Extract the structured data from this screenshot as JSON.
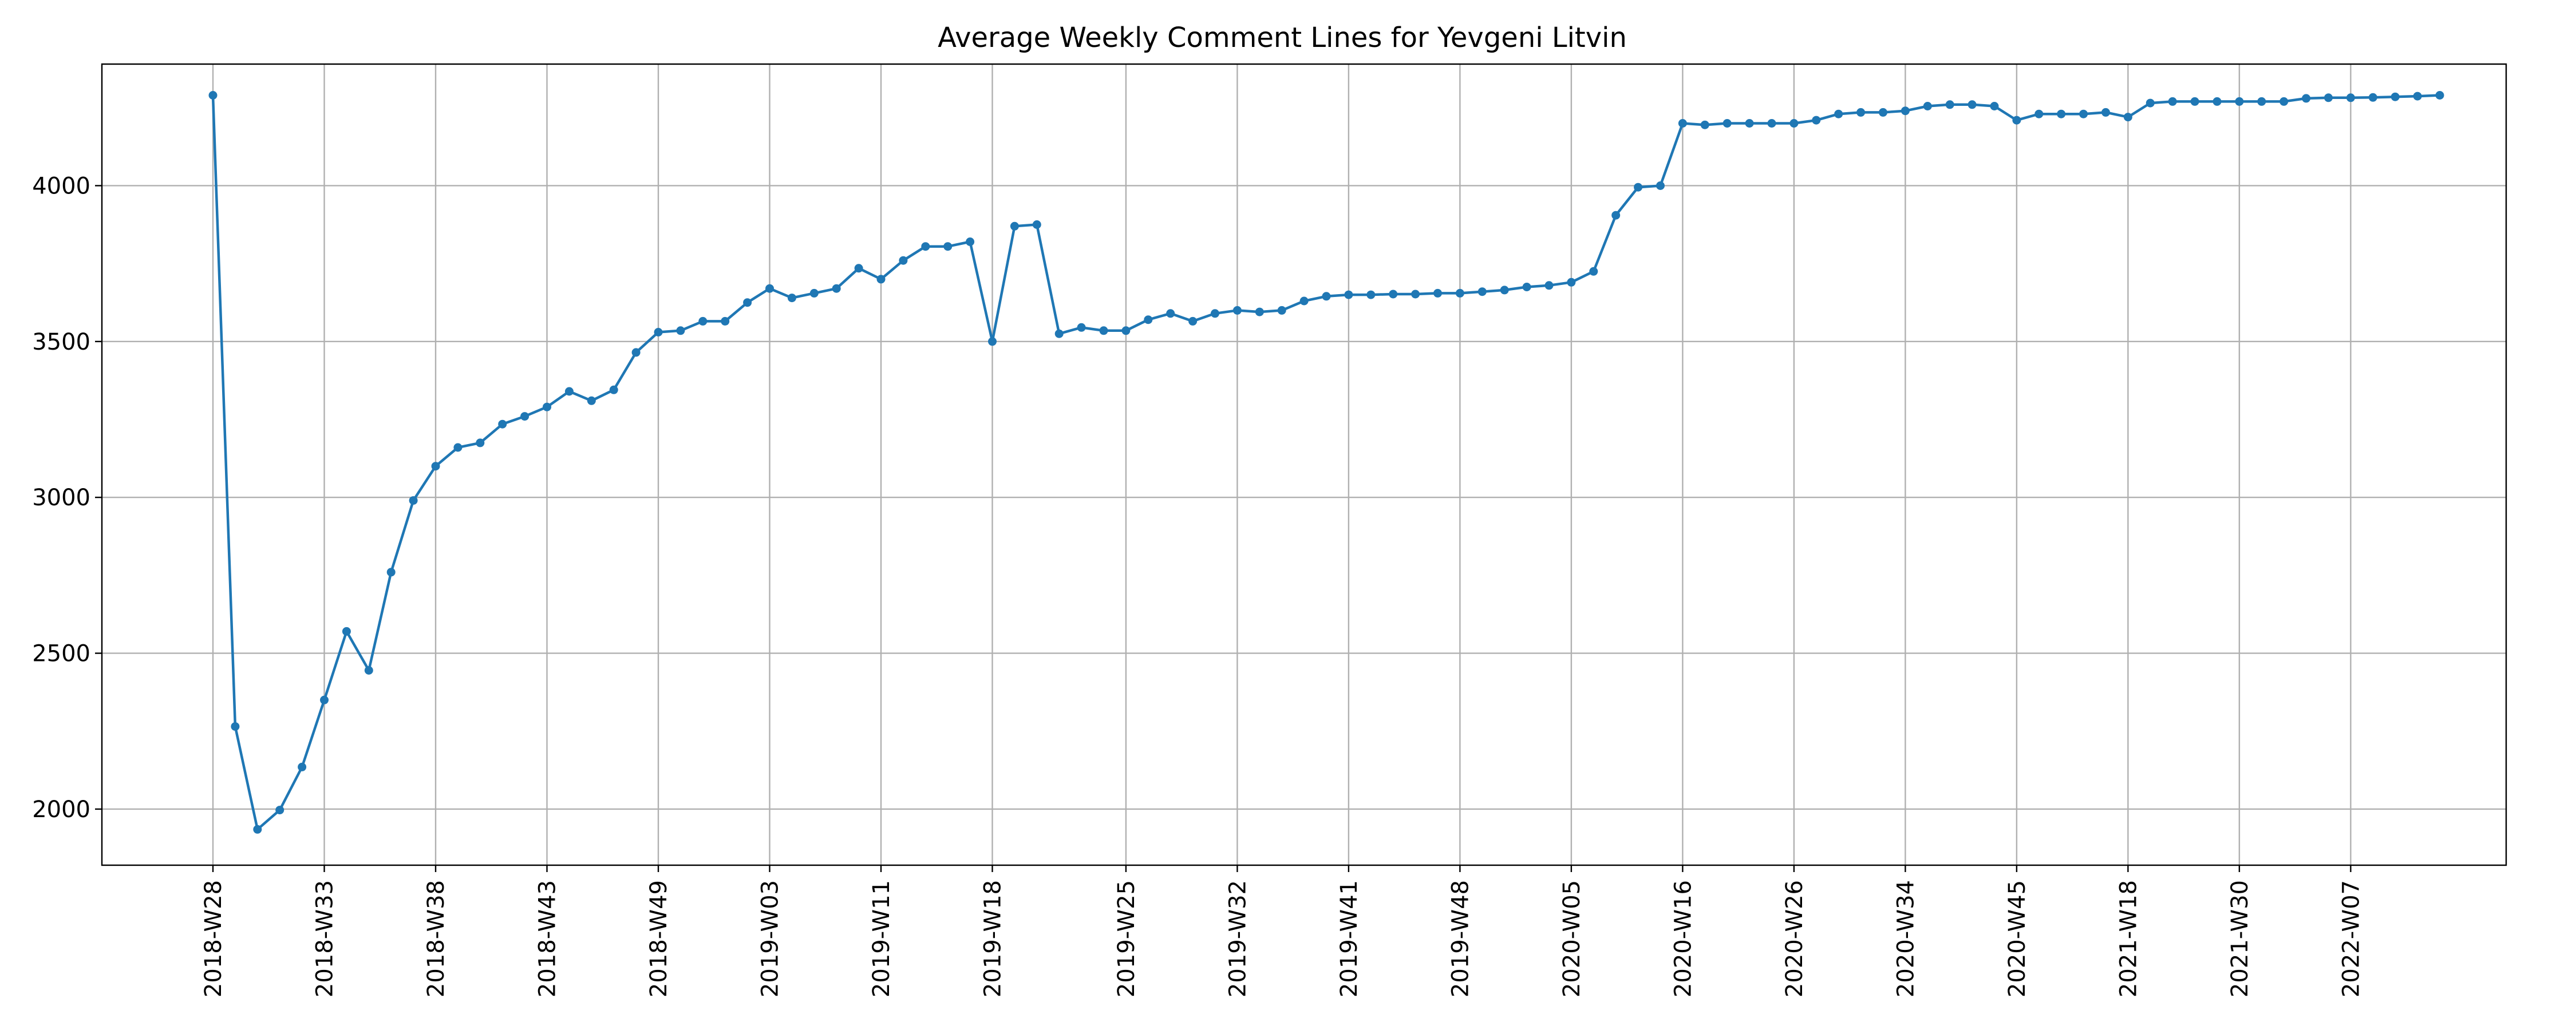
{
  "colors": {
    "series": "#1f77b4",
    "grid": "#b0b0b0",
    "axis": "#000000",
    "background": "#ffffff"
  },
  "chart_data": {
    "type": "line",
    "title": "Average Weekly Comment Lines for Yevgeni Litvin",
    "xlabel": "",
    "ylabel": "",
    "ylim": [
      1820,
      4390
    ],
    "yticks": [
      2000,
      2500,
      3000,
      3500,
      4000
    ],
    "grid": true,
    "legend": "none",
    "x": [
      "2018-W28",
      "2018-W29",
      "2018-W30",
      "2018-W31",
      "2018-W32",
      "2018-W33",
      "2018-W34",
      "2018-W35",
      "2018-W36",
      "2018-W37",
      "2018-W38",
      "2018-W39",
      "2018-W40",
      "2018-W41",
      "2018-W42",
      "2018-W43",
      "2018-W44",
      "2018-W45",
      "2018-W46",
      "2018-W47",
      "2018-W49",
      "2018-W50",
      "2018-W51",
      "2018-W52",
      "2019-W01",
      "2019-W03",
      "2019-W04",
      "2019-W05",
      "2019-W06",
      "2019-W08",
      "2019-W11",
      "2019-W12",
      "2019-W13",
      "2019-W14",
      "2019-W16",
      "2019-W18",
      "2019-W19",
      "2019-W20",
      "2019-W21",
      "2019-W22",
      "2019-W23",
      "2019-W25",
      "2019-W26",
      "2019-W27",
      "2019-W29",
      "2019-W31",
      "2019-W32",
      "2019-W34",
      "2019-W35",
      "2019-W37",
      "2019-W39",
      "2019-W41",
      "2019-W42",
      "2019-W43",
      "2019-W44",
      "2019-W46",
      "2019-W48",
      "2019-W49",
      "2019-W50",
      "2019-W51",
      "2020-W01",
      "2020-W05",
      "2020-W06",
      "2020-W07",
      "2020-W08",
      "2020-W10",
      "2020-W16",
      "2020-W19",
      "2020-W20",
      "2020-W21",
      "2020-W23",
      "2020-W26",
      "2020-W27",
      "2020-W28",
      "2020-W30",
      "2020-W32",
      "2020-W34",
      "2020-W35",
      "2020-W37",
      "2020-W39",
      "2020-W43",
      "2020-W45",
      "2020-W46",
      "2020-W49",
      "2021-W02",
      "2021-W10",
      "2021-W18",
      "2021-W19",
      "2021-W22",
      "2021-W24",
      "2021-W26",
      "2021-W30",
      "2021-W33",
      "2021-W36",
      "2021-W46",
      "2021-W51",
      "2022-W07",
      "2022-W10",
      "2022-W13",
      "2022-W15",
      "2022-W16"
    ],
    "series": [
      {
        "name": "",
        "values": [
          4290,
          2265,
          1935,
          1997,
          2135,
          2350,
          2570,
          2445,
          2760,
          2990,
          3100,
          3160,
          3175,
          3235,
          3260,
          3290,
          3340,
          3310,
          3345,
          3465,
          3530,
          3535,
          3565,
          3565,
          3625,
          3670,
          3640,
          3655,
          3670,
          3735,
          3700,
          3760,
          3805,
          3805,
          3820,
          3500,
          3870,
          3875,
          3525,
          3545,
          3535,
          3535,
          3570,
          3590,
          3565,
          3590,
          3600,
          3595,
          3600,
          3630,
          3645,
          3650,
          3650,
          3652,
          3652,
          3655,
          3655,
          3660,
          3665,
          3675,
          3680,
          3690,
          3725,
          3905,
          3995,
          4000,
          4200,
          4195,
          4200,
          4200,
          4200,
          4200,
          4210,
          4230,
          4235,
          4235,
          4240,
          4255,
          4260,
          4260,
          4255,
          4210,
          4230,
          4230,
          4230,
          4235,
          4220,
          4265,
          4270,
          4270,
          4270,
          4270,
          4270,
          4270,
          4280,
          4282,
          4282,
          4283,
          4285,
          4287,
          4290
        ]
      }
    ],
    "xticks": [
      "2018-W28",
      "2018-W33",
      "2018-W38",
      "2018-W43",
      "2018-W49",
      "2019-W03",
      "2019-W11",
      "2019-W18",
      "2019-W25",
      "2019-W32",
      "2019-W41",
      "2019-W48",
      "2020-W05",
      "2020-W16",
      "2020-W26",
      "2020-W34",
      "2020-W45",
      "2021-W18",
      "2021-W30",
      "2022-W07"
    ],
    "xtick_labels": [
      "2018-W28",
      "2018-W33",
      "2018-W38",
      "2018-W43",
      "2018-W49",
      "2019-W03",
      "2019-W11",
      "2019-W18",
      "2019-W25",
      "2019-W32",
      "2019-W41",
      "2019-W48",
      "2020-W05",
      "2020-W16",
      "2020-W26",
      "2020-W34",
      "2020-W45",
      "2021-W18",
      "2021-W30",
      "2022-W07"
    ],
    "ytick_labels": [
      "2000",
      "2500",
      "3000",
      "3500",
      "4000"
    ]
  }
}
